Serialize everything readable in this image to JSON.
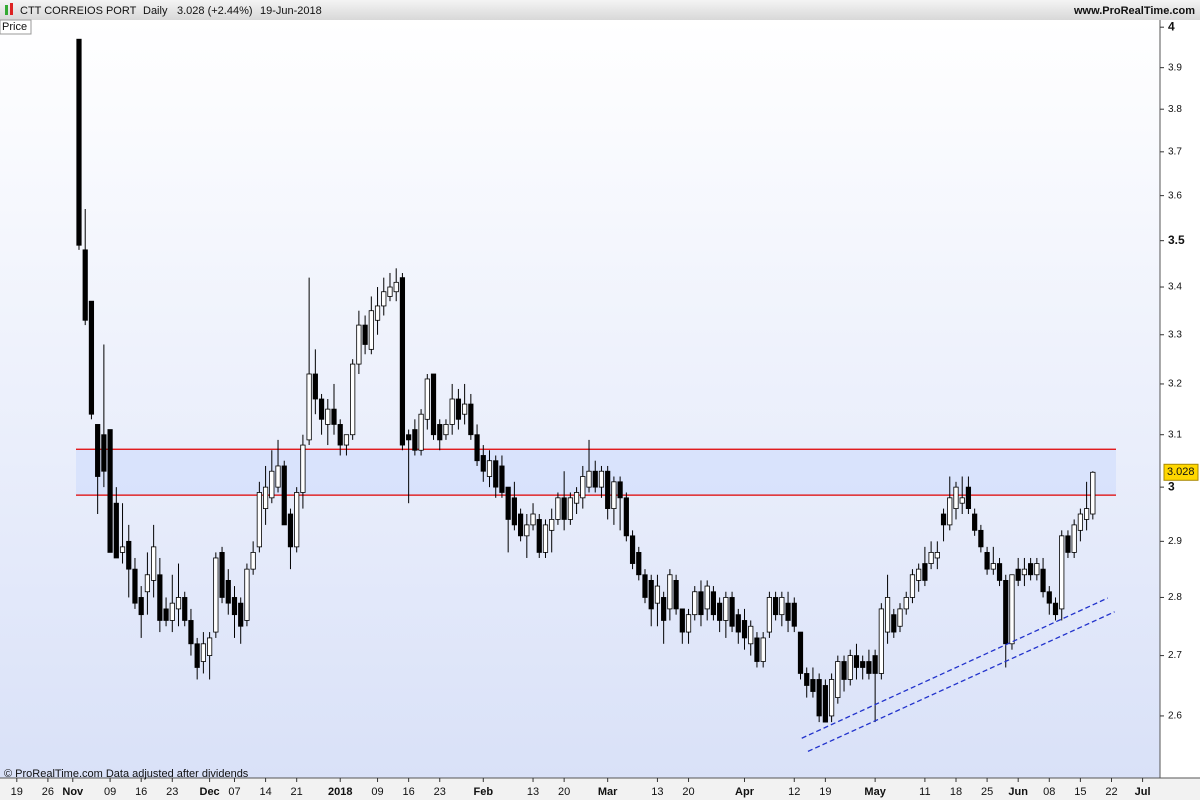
{
  "header": {
    "title": "CTT CORREIOS PORT",
    "period": "Daily",
    "last": "3.028 (+2.44%)",
    "date": "19-Jun-2018",
    "source": "www.ProRealTime.com"
  },
  "footer": "© ProRealTime.com  Data adjusted after dividends",
  "chart_data": {
    "type": "candlestick",
    "panel_label": "Price",
    "log_scale": true,
    "ylim": [
      2.501,
      4.018
    ],
    "yticks": [
      2.6,
      2.7,
      2.8,
      2.9,
      3,
      3.1,
      3.2,
      3.3,
      3.4,
      3.5,
      3.6,
      3.7,
      3.8,
      3.9,
      4
    ],
    "xlim": [
      -2.7,
      183.8
    ],
    "xticks": [
      {
        "value": 0,
        "label": "19"
      },
      {
        "value": 5,
        "label": "26"
      },
      {
        "value": 9,
        "label": "Nov"
      },
      {
        "value": 15,
        "label": "09"
      },
      {
        "value": 20,
        "label": "16"
      },
      {
        "value": 25,
        "label": "23"
      },
      {
        "value": 31,
        "label": "Dec"
      },
      {
        "value": 35,
        "label": "07"
      },
      {
        "value": 40,
        "label": "14"
      },
      {
        "value": 45,
        "label": "21"
      },
      {
        "value": 52,
        "label": "2018"
      },
      {
        "value": 58,
        "label": "09"
      },
      {
        "value": 63,
        "label": "16"
      },
      {
        "value": 68,
        "label": "23"
      },
      {
        "value": 75,
        "label": "Feb"
      },
      {
        "value": 83,
        "label": "13"
      },
      {
        "value": 88,
        "label": "20"
      },
      {
        "value": 95,
        "label": "Mar"
      },
      {
        "value": 103,
        "label": "13"
      },
      {
        "value": 108,
        "label": "20"
      },
      {
        "value": 117,
        "label": "Apr"
      },
      {
        "value": 125,
        "label": "12"
      },
      {
        "value": 130,
        "label": "19"
      },
      {
        "value": 138,
        "label": "May"
      },
      {
        "value": 146,
        "label": "11"
      },
      {
        "value": 151,
        "label": "18"
      },
      {
        "value": 156,
        "label": "25"
      },
      {
        "value": 161,
        "label": "Jun"
      },
      {
        "value": 166,
        "label": "08"
      },
      {
        "value": 171,
        "label": "15"
      },
      {
        "value": 176,
        "label": "22"
      },
      {
        "value": 181,
        "label": "Jul"
      }
    ],
    "up_color": "#ffffff",
    "down_color": "#000000",
    "level_color": "#e00000",
    "zone_color": "#d4e0fc",
    "trend_color": "#2233cc",
    "last_color": "#ffd700",
    "levels": [
      3.072,
      2.985
    ],
    "trendlines": [
      {
        "x": [
          126.2,
          175.4
        ],
        "y": [
          2.564,
          2.799
        ]
      },
      {
        "x": [
          127.2,
          176.5
        ],
        "y": [
          2.543,
          2.775
        ]
      }
    ],
    "open": [
      null,
      null,
      null,
      null,
      null,
      null,
      null,
      null,
      null,
      null,
      3.97,
      3.48,
      3.37,
      3.12,
      3.1,
      3.11,
      2.97,
      2.88,
      2.9,
      2.85,
      2.8,
      2.81,
      2.83,
      2.84,
      2.78,
      2.76,
      2.78,
      2.8,
      2.76,
      2.72,
      2.69,
      2.7,
      2.74,
      2.88,
      2.83,
      2.8,
      2.79,
      2.76,
      2.85,
      2.89,
      2.96,
      2.98,
      3.0,
      3.04,
      2.95,
      2.89,
      2.99,
      3.09,
      3.22,
      3.17,
      3.12,
      3.15,
      3.12,
      3.08,
      3.1,
      3.24,
      3.32,
      3.27,
      3.33,
      3.36,
      3.38,
      3.39,
      3.42,
      3.1,
      3.11,
      3.07,
      3.13,
      3.22,
      3.12,
      3.1,
      3.12,
      3.17,
      3.14,
      3.16,
      3.1,
      3.06,
      3.02,
      3.05,
      3.04,
      3.0,
      2.98,
      2.95,
      2.91,
      2.93,
      2.94,
      2.88,
      2.92,
      2.94,
      2.98,
      2.94,
      2.97,
      2.98,
      3.0,
      3.03,
      3.0,
      3.03,
      2.96,
      3.01,
      2.98,
      2.91,
      2.88,
      2.84,
      2.83,
      2.79,
      2.8,
      2.78,
      2.83,
      2.78,
      2.74,
      2.77,
      2.81,
      2.78,
      2.81,
      2.79,
      2.76,
      2.8,
      2.77,
      2.76,
      2.72,
      2.73,
      2.69,
      2.74,
      2.8,
      2.77,
      2.79,
      2.79,
      2.74,
      2.67,
      2.66,
      2.66,
      2.65,
      2.6,
      2.63,
      2.69,
      2.66,
      2.7,
      2.69,
      2.69,
      2.7,
      2.67,
      2.74,
      2.77,
      2.75,
      2.78,
      2.8,
      2.83,
      2.86,
      2.86,
      2.87,
      2.95,
      2.93,
      2.96,
      2.97,
      3.0,
      2.95,
      2.92,
      2.88,
      2.85,
      2.86,
      2.83,
      2.72,
      2.85,
      2.84,
      2.86,
      2.84,
      2.85,
      2.81,
      2.79,
      2.78,
      2.91,
      2.88,
      2.92,
      2.94,
      2.95
    ],
    "high": [
      null,
      null,
      null,
      null,
      null,
      null,
      null,
      null,
      null,
      null,
      3.97,
      3.57,
      3.37,
      3.12,
      3.28,
      3.11,
      3.0,
      2.97,
      2.93,
      2.87,
      2.82,
      2.88,
      2.93,
      2.87,
      2.8,
      2.84,
      2.86,
      2.81,
      2.78,
      2.73,
      2.74,
      2.74,
      2.88,
      2.89,
      2.85,
      2.82,
      2.8,
      2.86,
      2.9,
      3.01,
      3.04,
      3.07,
      3.09,
      3.05,
      2.96,
      3.0,
      3.1,
      3.42,
      3.27,
      3.18,
      3.17,
      3.2,
      3.13,
      3.1,
      3.25,
      3.35,
      3.34,
      3.38,
      3.4,
      3.42,
      3.43,
      3.44,
      3.43,
      3.11,
      3.13,
      3.15,
      3.22,
      3.22,
      3.13,
      3.13,
      3.2,
      3.19,
      3.2,
      3.18,
      3.12,
      3.08,
      3.07,
      3.06,
      3.06,
      3.0,
      3.01,
      2.96,
      2.95,
      2.97,
      2.95,
      2.94,
      2.96,
      2.99,
      3.03,
      2.99,
      3.0,
      3.04,
      3.09,
      3.05,
      3.04,
      3.04,
      3.02,
      3.02,
      2.99,
      2.92,
      2.89,
      2.85,
      2.84,
      2.84,
      2.81,
      2.85,
      2.84,
      2.78,
      2.78,
      2.82,
      2.83,
      2.83,
      2.82,
      2.8,
      2.81,
      2.81,
      2.78,
      2.78,
      2.76,
      2.74,
      2.74,
      2.81,
      2.81,
      2.81,
      2.81,
      2.8,
      2.74,
      2.68,
      2.68,
      2.67,
      2.66,
      2.67,
      2.7,
      2.7,
      2.71,
      2.72,
      2.7,
      2.71,
      2.71,
      2.79,
      2.84,
      2.78,
      2.79,
      2.81,
      2.85,
      2.86,
      2.89,
      2.9,
      2.9,
      2.96,
      3.02,
      3.01,
      3.02,
      3.02,
      2.96,
      2.93,
      2.89,
      2.89,
      2.87,
      2.84,
      2.84,
      2.87,
      2.87,
      2.87,
      2.87,
      2.87,
      2.82,
      2.8,
      2.92,
      2.92,
      2.94,
      2.96,
      3.01,
      3.03
    ],
    "low": [
      null,
      null,
      null,
      null,
      null,
      null,
      null,
      null,
      null,
      null,
      3.48,
      3.32,
      3.13,
      2.95,
      3.0,
      2.88,
      2.87,
      2.86,
      2.8,
      2.78,
      2.73,
      2.77,
      2.8,
      2.74,
      2.75,
      2.74,
      2.75,
      2.75,
      2.7,
      2.66,
      2.67,
      2.66,
      2.73,
      2.79,
      2.77,
      2.73,
      2.72,
      2.75,
      2.84,
      2.88,
      2.93,
      2.97,
      2.99,
      2.93,
      2.85,
      2.88,
      2.96,
      3.08,
      3.14,
      3.1,
      3.08,
      3.1,
      3.06,
      3.06,
      3.09,
      3.22,
      3.26,
      3.26,
      3.3,
      3.34,
      3.37,
      3.37,
      3.07,
      2.97,
      3.06,
      3.06,
      3.11,
      3.09,
      3.07,
      3.09,
      3.1,
      3.11,
      3.12,
      3.09,
      3.04,
      3.01,
      3.0,
      2.98,
      2.98,
      2.88,
      2.92,
      2.9,
      2.87,
      2.92,
      2.87,
      2.87,
      2.88,
      2.93,
      2.92,
      2.93,
      2.95,
      2.96,
      2.99,
      2.99,
      2.98,
      2.94,
      2.93,
      2.92,
      2.9,
      2.85,
      2.83,
      2.79,
      2.75,
      2.75,
      2.72,
      2.76,
      2.77,
      2.72,
      2.72,
      2.76,
      2.75,
      2.76,
      2.76,
      2.74,
      2.73,
      2.74,
      2.72,
      2.71,
      2.7,
      2.68,
      2.68,
      2.73,
      2.76,
      2.75,
      2.74,
      2.74,
      2.66,
      2.63,
      2.63,
      2.59,
      2.59,
      2.59,
      2.62,
      2.64,
      2.65,
      2.66,
      2.66,
      2.66,
      2.59,
      2.66,
      2.72,
      2.73,
      2.74,
      2.77,
      2.79,
      2.81,
      2.82,
      2.85,
      2.85,
      2.9,
      2.92,
      2.94,
      2.95,
      2.95,
      2.91,
      2.88,
      2.84,
      2.84,
      2.82,
      2.68,
      2.71,
      2.82,
      2.82,
      2.83,
      2.83,
      2.8,
      2.77,
      2.76,
      2.76,
      2.87,
      2.87,
      2.9,
      2.92,
      2.94
    ],
    "close": [
      null,
      null,
      null,
      null,
      null,
      null,
      null,
      null,
      null,
      null,
      3.49,
      3.33,
      3.14,
      3.02,
      3.03,
      2.88,
      2.87,
      2.89,
      2.85,
      2.79,
      2.77,
      2.84,
      2.89,
      2.76,
      2.76,
      2.79,
      2.8,
      2.76,
      2.72,
      2.68,
      2.72,
      2.73,
      2.87,
      2.8,
      2.79,
      2.77,
      2.75,
      2.85,
      2.88,
      2.99,
      3.0,
      3.03,
      3.04,
      2.93,
      2.89,
      2.99,
      3.08,
      3.22,
      3.17,
      3.13,
      3.15,
      3.12,
      3.08,
      3.1,
      3.24,
      3.32,
      3.28,
      3.35,
      3.36,
      3.39,
      3.4,
      3.41,
      3.08,
      3.09,
      3.07,
      3.14,
      3.21,
      3.1,
      3.09,
      3.12,
      3.17,
      3.13,
      3.16,
      3.1,
      3.05,
      3.03,
      3.05,
      3.0,
      2.99,
      2.94,
      2.93,
      2.91,
      2.93,
      2.95,
      2.88,
      2.93,
      2.94,
      2.98,
      2.94,
      2.98,
      2.99,
      3.02,
      3.03,
      3.0,
      3.03,
      2.96,
      3.01,
      2.98,
      2.91,
      2.86,
      2.84,
      2.8,
      2.78,
      2.82,
      2.76,
      2.84,
      2.78,
      2.74,
      2.77,
      2.81,
      2.77,
      2.82,
      2.77,
      2.76,
      2.8,
      2.75,
      2.74,
      2.73,
      2.75,
      2.69,
      2.73,
      2.8,
      2.77,
      2.8,
      2.76,
      2.75,
      2.67,
      2.65,
      2.64,
      2.6,
      2.59,
      2.66,
      2.69,
      2.66,
      2.7,
      2.68,
      2.68,
      2.67,
      2.67,
      2.78,
      2.8,
      2.74,
      2.78,
      2.8,
      2.84,
      2.85,
      2.83,
      2.88,
      2.88,
      2.93,
      2.98,
      3.0,
      2.98,
      2.96,
      2.92,
      2.89,
      2.85,
      2.86,
      2.83,
      2.72,
      2.84,
      2.83,
      2.85,
      2.84,
      2.86,
      2.81,
      2.79,
      2.77,
      2.91,
      2.88,
      2.93,
      2.95,
      2.96,
      3.028
    ]
  }
}
